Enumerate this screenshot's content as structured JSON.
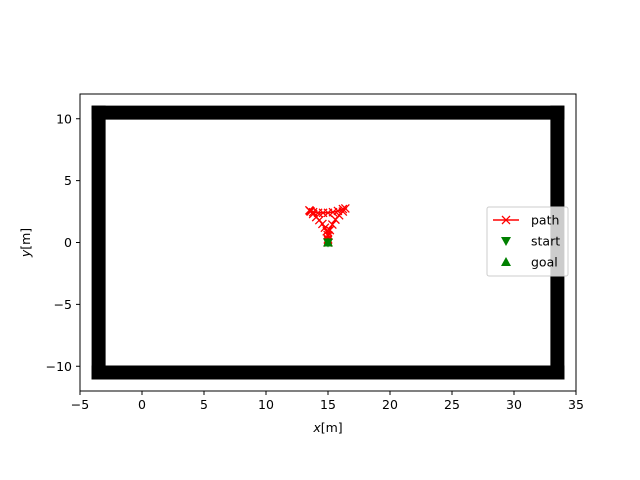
{
  "chart_data": {
    "type": "line",
    "title": "",
    "xlabel": {
      "prefix": "x",
      "unit": "[m]"
    },
    "ylabel": {
      "prefix": "y",
      "unit": "[m]"
    },
    "xlim": [
      -5,
      35
    ],
    "ylim": [
      -12,
      12
    ],
    "xticks": [
      -5,
      0,
      5,
      10,
      15,
      20,
      25,
      30,
      35
    ],
    "yticks": [
      -10,
      -5,
      0,
      5,
      10
    ],
    "grid": false,
    "legend_position": "center-right",
    "obstacles": {
      "color": "#000000",
      "walls": [
        {
          "x": [
            -3.5,
            33.5
          ],
          "y": [
            10.5,
            10.5
          ]
        },
        {
          "x": [
            -3.5,
            33.5
          ],
          "y": [
            -10.5,
            -10.5
          ]
        },
        {
          "x": [
            -3.5,
            -3.5
          ],
          "y": [
            -10.5,
            10.5
          ]
        },
        {
          "x": [
            33.5,
            33.5
          ],
          "y": [
            -10.5,
            10.5
          ]
        }
      ]
    },
    "series": [
      {
        "name": "path",
        "kind": "line-marker-x",
        "color": "#ff0000",
        "x": [
          15.0,
          15.0,
          14.97,
          14.9,
          14.75,
          14.55,
          14.3,
          14.05,
          13.8,
          13.6,
          13.5,
          13.55,
          13.8,
          14.2,
          14.6,
          15.0,
          15.4,
          15.8,
          16.2,
          16.4,
          16.2,
          15.9,
          15.6,
          15.35,
          15.15,
          15.05,
          15.0
        ],
        "y": [
          0.0,
          0.3,
          0.6,
          0.9,
          1.2,
          1.5,
          1.8,
          2.05,
          2.3,
          2.5,
          2.6,
          2.55,
          2.45,
          2.4,
          2.4,
          2.4,
          2.45,
          2.55,
          2.7,
          2.75,
          2.5,
          2.2,
          1.85,
          1.45,
          1.0,
          0.55,
          0.2
        ]
      },
      {
        "name": "start",
        "kind": "marker-triangle-down",
        "color": "#008000",
        "x": [
          15.0
        ],
        "y": [
          0.0
        ]
      },
      {
        "name": "goal",
        "kind": "marker-triangle-up",
        "color": "#008000",
        "x": [
          15.0
        ],
        "y": [
          0.0
        ]
      }
    ]
  }
}
